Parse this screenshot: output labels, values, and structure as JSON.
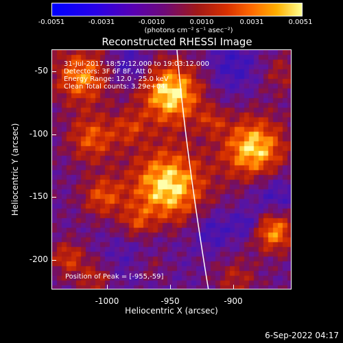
{
  "colorbar": {
    "ticks": [
      "-0.0051",
      "-0.0031",
      "-0.0010",
      "0.0010",
      "0.0031",
      "0.0051"
    ],
    "units": "(photons cm⁻² s⁻¹ asec⁻²)"
  },
  "title": "Reconstructed RHESSI Image",
  "info": {
    "time": "31-Jul-2017 18:57:12.000 to 19:03:12.000",
    "detectors": "Detectors: 3F 6F 8F, Att 0",
    "energy": "Energy Range: 12.0 - 25.0 keV",
    "counts": "Clean    Total counts: 3.29e+04"
  },
  "y_axis": {
    "label": "Heliocentric Y (arcsec)",
    "ticks": [
      "-50",
      "-100",
      "-150",
      "-200"
    ]
  },
  "x_axis": {
    "label": "Heliocentric X (arcsec)",
    "ticks": [
      "-1000",
      "-950",
      "-900"
    ]
  },
  "peak": "Position of Peak = [-955,-59]",
  "timestamp": "6-Sep-2022 04:17",
  "colors": {
    "background": "#000000",
    "limb_line": "#ffffff"
  }
}
